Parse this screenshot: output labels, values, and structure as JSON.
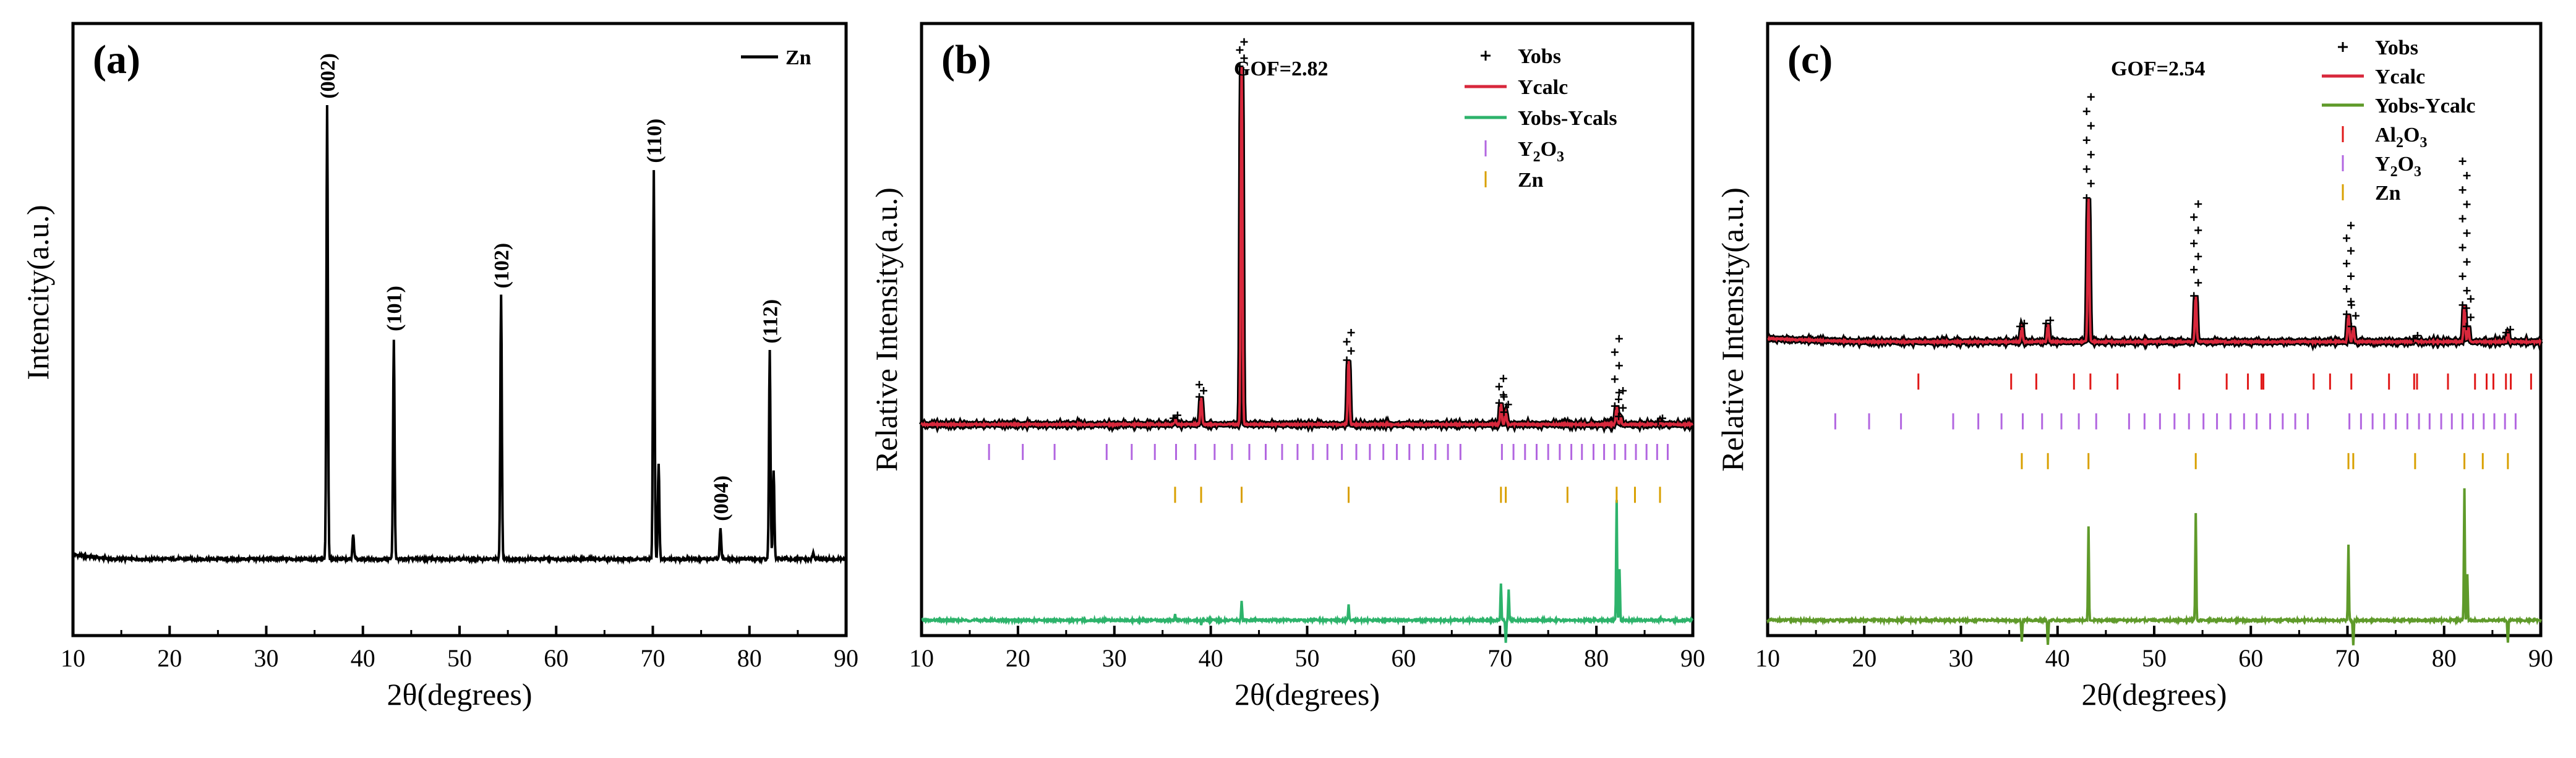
{
  "colors": {
    "zn_line": "#000000",
    "yobs": "#000000",
    "ycalc": "#d8283c",
    "diff_b": "#2db36b",
    "diff_c": "#5f9a2a",
    "tick_y2o3": "#b266e0",
    "tick_zn": "#d9a000",
    "tick_al2o3": "#e01818"
  },
  "chart_data": [
    {
      "id": "a",
      "type": "line",
      "panel_label": "(a)",
      "xlabel": "2θ(degrees)",
      "ylabel": "Intencity(a.u.)",
      "xlim": [
        10,
        90
      ],
      "ylim": [
        0,
        100
      ],
      "xticks": [
        10,
        20,
        30,
        40,
        50,
        60,
        70,
        80,
        90
      ],
      "yticks_shown": false,
      "legend": {
        "position": "top-right",
        "entries": [
          {
            "name": "Zn",
            "marker": "line",
            "color": "#000000"
          }
        ]
      },
      "baseline": 12.5,
      "series": [
        {
          "name": "Zn",
          "peaks": [
            {
              "x": 36.3,
              "y": 86.5,
              "label": "(002)"
            },
            {
              "x": 39.0,
              "y": 16.5,
              "label": ""
            },
            {
              "x": 43.2,
              "y": 48.5,
              "label": "(101)"
            },
            {
              "x": 54.3,
              "y": 55.5,
              "label": "(102)"
            },
            {
              "x": 70.1,
              "y": 76.0,
              "label": "(110)"
            },
            {
              "x": 70.6,
              "y": 28.0,
              "label": ""
            },
            {
              "x": 77.0,
              "y": 17.5,
              "label": "(004)"
            },
            {
              "x": 82.1,
              "y": 46.5,
              "label": "(112)"
            },
            {
              "x": 82.5,
              "y": 27.0,
              "label": ""
            },
            {
              "x": 86.6,
              "y": 13.5,
              "label": ""
            }
          ]
        }
      ]
    },
    {
      "id": "b",
      "type": "line",
      "panel_label": "(b)",
      "annotation": "GOF=2.82",
      "xlabel": "2θ(degrees)",
      "ylabel": "Relative Intensity(a.u.)",
      "xlim": [
        10,
        90
      ],
      "ylim": [
        0,
        100
      ],
      "xticks": [
        10,
        20,
        30,
        40,
        50,
        60,
        70,
        80,
        90
      ],
      "yticks_shown": false,
      "legend": {
        "position": "top-right",
        "entries": [
          {
            "name": "Yobs",
            "marker": "+",
            "color": "#000000"
          },
          {
            "name": "Ycalc",
            "marker": "line",
            "color": "#d8283c"
          },
          {
            "name": "Yobs-Ycals",
            "marker": "line",
            "color": "#2db36b"
          },
          {
            "name": "Y",
            "sub1": "2",
            "mid": "O",
            "sub2": "3",
            "marker": "tick",
            "color": "#b266e0"
          },
          {
            "name": "Zn",
            "marker": "tick",
            "color": "#d9a000"
          }
        ]
      },
      "baseline": 34.5,
      "diff_baseline": 2.5,
      "peaks": [
        {
          "x": 36.3,
          "y": 35.5,
          "obs": 36.0
        },
        {
          "x": 39.0,
          "y": 39.0,
          "obs": 41.0
        },
        {
          "x": 43.2,
          "y": 93.0,
          "obs": 97.0
        },
        {
          "x": 54.3,
          "y": 45.0,
          "obs": 49.5
        },
        {
          "x": 70.1,
          "y": 38.0,
          "obs": 42.0
        },
        {
          "x": 70.6,
          "y": 36.5,
          "obs": 39.0
        },
        {
          "x": 82.1,
          "y": 37.5,
          "obs": 48.5
        },
        {
          "x": 82.5,
          "y": 35.8,
          "obs": 40.0
        },
        {
          "x": 86.6,
          "y": 35.0,
          "obs": 35.5
        }
      ],
      "diff_spikes": [
        {
          "x": 36.3,
          "y": 3.5
        },
        {
          "x": 39.0,
          "y": 1.8
        },
        {
          "x": 43.2,
          "y": 5.5
        },
        {
          "x": 54.3,
          "y": 5.0
        },
        {
          "x": 70.1,
          "y": 8.5
        },
        {
          "x": 70.6,
          "y": -1.0
        },
        {
          "x": 70.9,
          "y": 7.5
        },
        {
          "x": 82.1,
          "y": 22.0
        },
        {
          "x": 82.4,
          "y": 11.0
        },
        {
          "x": 86.6,
          "y": 3.0
        }
      ],
      "tick_rows": [
        {
          "phase": "Y2O3",
          "y": 30.0,
          "positions": [
            17.0,
            20.5,
            23.8,
            29.2,
            31.8,
            34.2,
            36.4,
            38.4,
            40.4,
            42.2,
            44.0,
            45.7,
            47.4,
            49.0,
            50.6,
            52.1,
            53.6,
            55.1,
            56.5,
            57.9,
            59.3,
            60.6,
            62.0,
            63.3,
            64.6,
            65.9,
            70.2,
            71.4,
            72.6,
            73.8,
            75.0,
            76.2,
            77.4,
            78.5,
            79.7,
            80.8,
            81.9,
            83.0,
            84.1,
            85.2,
            86.3,
            87.4
          ]
        },
        {
          "phase": "Zn",
          "y": 23.0,
          "positions": [
            36.3,
            39.0,
            43.2,
            54.3,
            70.1,
            70.6,
            77.0,
            82.1,
            84.0,
            86.6
          ]
        }
      ]
    },
    {
      "id": "c",
      "type": "line",
      "panel_label": "(c)",
      "annotation": "GOF=2.54",
      "xlabel": "2θ(degrees)",
      "ylabel": "Relative Intensity(a.u.)",
      "xlim": [
        10,
        90
      ],
      "ylim": [
        0,
        100
      ],
      "xticks": [
        10,
        20,
        30,
        40,
        50,
        60,
        70,
        80,
        90
      ],
      "yticks_shown": false,
      "legend": {
        "position": "top-right",
        "entries": [
          {
            "name": "Yobs",
            "marker": "+",
            "color": "#000000"
          },
          {
            "name": "Ycalc",
            "marker": "line",
            "color": "#d8283c"
          },
          {
            "name": "Yobs-Ycalc",
            "marker": "line",
            "color": "#5f9a2a"
          },
          {
            "name": "Al",
            "sub1": "2",
            "mid": "O",
            "sub2": "3",
            "marker": "tick",
            "color": "#e01818"
          },
          {
            "name": "Y",
            "sub1": "2",
            "mid": "O",
            "sub2": "3",
            "marker": "tick",
            "color": "#b266e0"
          },
          {
            "name": "Zn",
            "marker": "tick",
            "color": "#d9a000"
          }
        ]
      },
      "baseline": 48.0,
      "diff_baseline": 2.5,
      "peaks": [
        {
          "x": 36.3,
          "y": 50.5,
          "obs": 51.0
        },
        {
          "x": 39.0,
          "y": 51.0,
          "obs": 51.5
        },
        {
          "x": 43.2,
          "y": 71.5,
          "obs": 88.0
        },
        {
          "x": 54.3,
          "y": 55.5,
          "obs": 70.5
        },
        {
          "x": 70.1,
          "y": 52.5,
          "obs": 67.0
        },
        {
          "x": 70.6,
          "y": 50.5,
          "obs": 54.0
        },
        {
          "x": 77.0,
          "y": 48.5,
          "obs": 49.0
        },
        {
          "x": 82.1,
          "y": 54.0,
          "obs": 77.5
        },
        {
          "x": 82.5,
          "y": 50.5,
          "obs": 55.0
        },
        {
          "x": 86.6,
          "y": 49.5,
          "obs": 50.0
        }
      ],
      "diff_spikes": [
        {
          "x": 36.3,
          "y": -1.0
        },
        {
          "x": 39.0,
          "y": -1.5
        },
        {
          "x": 43.2,
          "y": 18.0
        },
        {
          "x": 54.3,
          "y": 20.0
        },
        {
          "x": 70.1,
          "y": 15.0
        },
        {
          "x": 70.6,
          "y": -1.5
        },
        {
          "x": 82.1,
          "y": 24.0
        },
        {
          "x": 82.4,
          "y": 10.0
        },
        {
          "x": 86.6,
          "y": -1.0
        }
      ],
      "tick_rows": [
        {
          "phase": "Al2O3",
          "y": 41.5,
          "positions": [
            25.6,
            35.2,
            37.8,
            41.7,
            43.4,
            46.2,
            52.6,
            57.5,
            59.7,
            61.1,
            61.3,
            66.5,
            68.2,
            70.4,
            74.3,
            76.9,
            77.2,
            80.4,
            83.2,
            84.4,
            85.1,
            86.4,
            86.9,
            89.0
          ]
        },
        {
          "phase": "Y2O3",
          "y": 35.0,
          "positions": [
            17.0,
            20.5,
            23.8,
            29.2,
            31.8,
            34.2,
            36.4,
            38.4,
            40.4,
            42.2,
            44.0,
            47.4,
            49.0,
            50.6,
            52.1,
            53.6,
            55.1,
            56.5,
            57.9,
            59.3,
            60.6,
            62.0,
            63.3,
            64.6,
            65.9,
            70.2,
            71.4,
            72.6,
            73.8,
            75.0,
            76.2,
            77.4,
            78.5,
            79.7,
            80.8,
            81.9,
            83.0,
            84.1,
            85.2,
            86.3,
            87.4
          ]
        },
        {
          "phase": "Zn",
          "y": 28.5,
          "positions": [
            36.3,
            39.0,
            43.2,
            54.3,
            70.1,
            70.6,
            77.0,
            82.1,
            84.0,
            86.6
          ]
        }
      ]
    }
  ]
}
